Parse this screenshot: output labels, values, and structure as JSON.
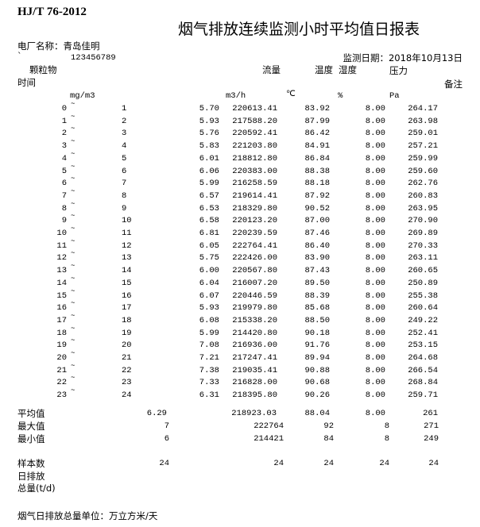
{
  "standard": "HJ/T 76-2012",
  "title": "烟气排放连续监测小时平均值日报表",
  "plant_label": "电厂名称：青岛佳明",
  "backtick": "`",
  "code": "123456789",
  "date_label": "监测日期：2018年10月13日",
  "headers": {
    "particulate": "颗粒物",
    "flow": "流量",
    "temperature": "温度",
    "humidity": "湿度",
    "pressure": "压力",
    "time": "时间",
    "remarks": "备注"
  },
  "units": {
    "particulate": "mg/m3",
    "flow": "m3/h",
    "temperature": "℃",
    "humidity": "%",
    "pressure": "Pa"
  },
  "tilde": "~",
  "rows": [
    {
      "from": "0",
      "to": "1",
      "particulate": "5.70",
      "flow": "220613.41",
      "temperature": "83.92",
      "humidity": "8.00",
      "pressure": "264.17"
    },
    {
      "from": "1",
      "to": "2",
      "particulate": "5.93",
      "flow": "217588.20",
      "temperature": "87.99",
      "humidity": "8.00",
      "pressure": "263.98"
    },
    {
      "from": "2",
      "to": "3",
      "particulate": "5.76",
      "flow": "220592.41",
      "temperature": "86.42",
      "humidity": "8.00",
      "pressure": "259.01"
    },
    {
      "from": "3",
      "to": "4",
      "particulate": "5.83",
      "flow": "221203.80",
      "temperature": "84.91",
      "humidity": "8.00",
      "pressure": "257.21"
    },
    {
      "from": "4",
      "to": "5",
      "particulate": "6.01",
      "flow": "218812.80",
      "temperature": "86.84",
      "humidity": "8.00",
      "pressure": "259.99"
    },
    {
      "from": "5",
      "to": "6",
      "particulate": "6.06",
      "flow": "220383.00",
      "temperature": "88.38",
      "humidity": "8.00",
      "pressure": "259.60"
    },
    {
      "from": "6",
      "to": "7",
      "particulate": "5.99",
      "flow": "216258.59",
      "temperature": "88.18",
      "humidity": "8.00",
      "pressure": "262.76"
    },
    {
      "from": "7",
      "to": "8",
      "particulate": "6.57",
      "flow": "219614.41",
      "temperature": "87.92",
      "humidity": "8.00",
      "pressure": "260.83"
    },
    {
      "from": "8",
      "to": "9",
      "particulate": "6.53",
      "flow": "218329.80",
      "temperature": "90.52",
      "humidity": "8.00",
      "pressure": "263.95"
    },
    {
      "from": "9",
      "to": "10",
      "particulate": "6.58",
      "flow": "220123.20",
      "temperature": "87.00",
      "humidity": "8.00",
      "pressure": "270.90"
    },
    {
      "from": "10",
      "to": "11",
      "particulate": "6.81",
      "flow": "220239.59",
      "temperature": "87.46",
      "humidity": "8.00",
      "pressure": "269.89"
    },
    {
      "from": "11",
      "to": "12",
      "particulate": "6.05",
      "flow": "222764.41",
      "temperature": "86.40",
      "humidity": "8.00",
      "pressure": "270.33"
    },
    {
      "from": "12",
      "to": "13",
      "particulate": "5.75",
      "flow": "222426.00",
      "temperature": "83.90",
      "humidity": "8.00",
      "pressure": "263.11"
    },
    {
      "from": "13",
      "to": "14",
      "particulate": "6.00",
      "flow": "220567.80",
      "temperature": "87.43",
      "humidity": "8.00",
      "pressure": "260.65"
    },
    {
      "from": "14",
      "to": "15",
      "particulate": "6.04",
      "flow": "216007.20",
      "temperature": "89.50",
      "humidity": "8.00",
      "pressure": "250.89"
    },
    {
      "from": "15",
      "to": "16",
      "particulate": "6.07",
      "flow": "220446.59",
      "temperature": "88.39",
      "humidity": "8.00",
      "pressure": "255.38"
    },
    {
      "from": "16",
      "to": "17",
      "particulate": "5.93",
      "flow": "219979.80",
      "temperature": "85.68",
      "humidity": "8.00",
      "pressure": "260.64"
    },
    {
      "from": "17",
      "to": "18",
      "particulate": "6.08",
      "flow": "215338.20",
      "temperature": "88.50",
      "humidity": "8.00",
      "pressure": "249.22"
    },
    {
      "from": "18",
      "to": "19",
      "particulate": "5.99",
      "flow": "214420.80",
      "temperature": "90.18",
      "humidity": "8.00",
      "pressure": "252.41"
    },
    {
      "from": "19",
      "to": "20",
      "particulate": "7.08",
      "flow": "216936.00",
      "temperature": "91.76",
      "humidity": "8.00",
      "pressure": "253.15"
    },
    {
      "from": "20",
      "to": "21",
      "particulate": "7.21",
      "flow": "217247.41",
      "temperature": "89.94",
      "humidity": "8.00",
      "pressure": "264.68"
    },
    {
      "from": "21",
      "to": "22",
      "particulate": "7.38",
      "flow": "219035.41",
      "temperature": "90.88",
      "humidity": "8.00",
      "pressure": "266.54"
    },
    {
      "from": "22",
      "to": "23",
      "particulate": "7.33",
      "flow": "216828.00",
      "temperature": "90.68",
      "humidity": "8.00",
      "pressure": "268.84"
    },
    {
      "from": "23",
      "to": "24",
      "particulate": "6.31",
      "flow": "218395.80",
      "temperature": "90.26",
      "humidity": "8.00",
      "pressure": "259.71"
    }
  ],
  "summary": {
    "average": {
      "label": "平均值",
      "particulate": "6.29",
      "flow": "218923.03",
      "temperature": "88.04",
      "humidity": "8.00",
      "pressure": "261"
    },
    "max": {
      "label": "最大值",
      "particulate": "7",
      "flow": "222764",
      "temperature": "92",
      "humidity": "8",
      "pressure": "271"
    },
    "min": {
      "label": "最小值",
      "particulate": "6",
      "flow": "214421",
      "temperature": "84",
      "humidity": "8",
      "pressure": "249"
    },
    "samples": {
      "label": "样本数",
      "particulate": "24",
      "flow": "24",
      "temperature": "24",
      "humidity": "24",
      "pressure": "24"
    }
  },
  "daily_emission_label_1": "日排放",
  "daily_emission_label_2": "总量(t/d)",
  "footer": "烟气日排放总量单位：万立方米/天"
}
